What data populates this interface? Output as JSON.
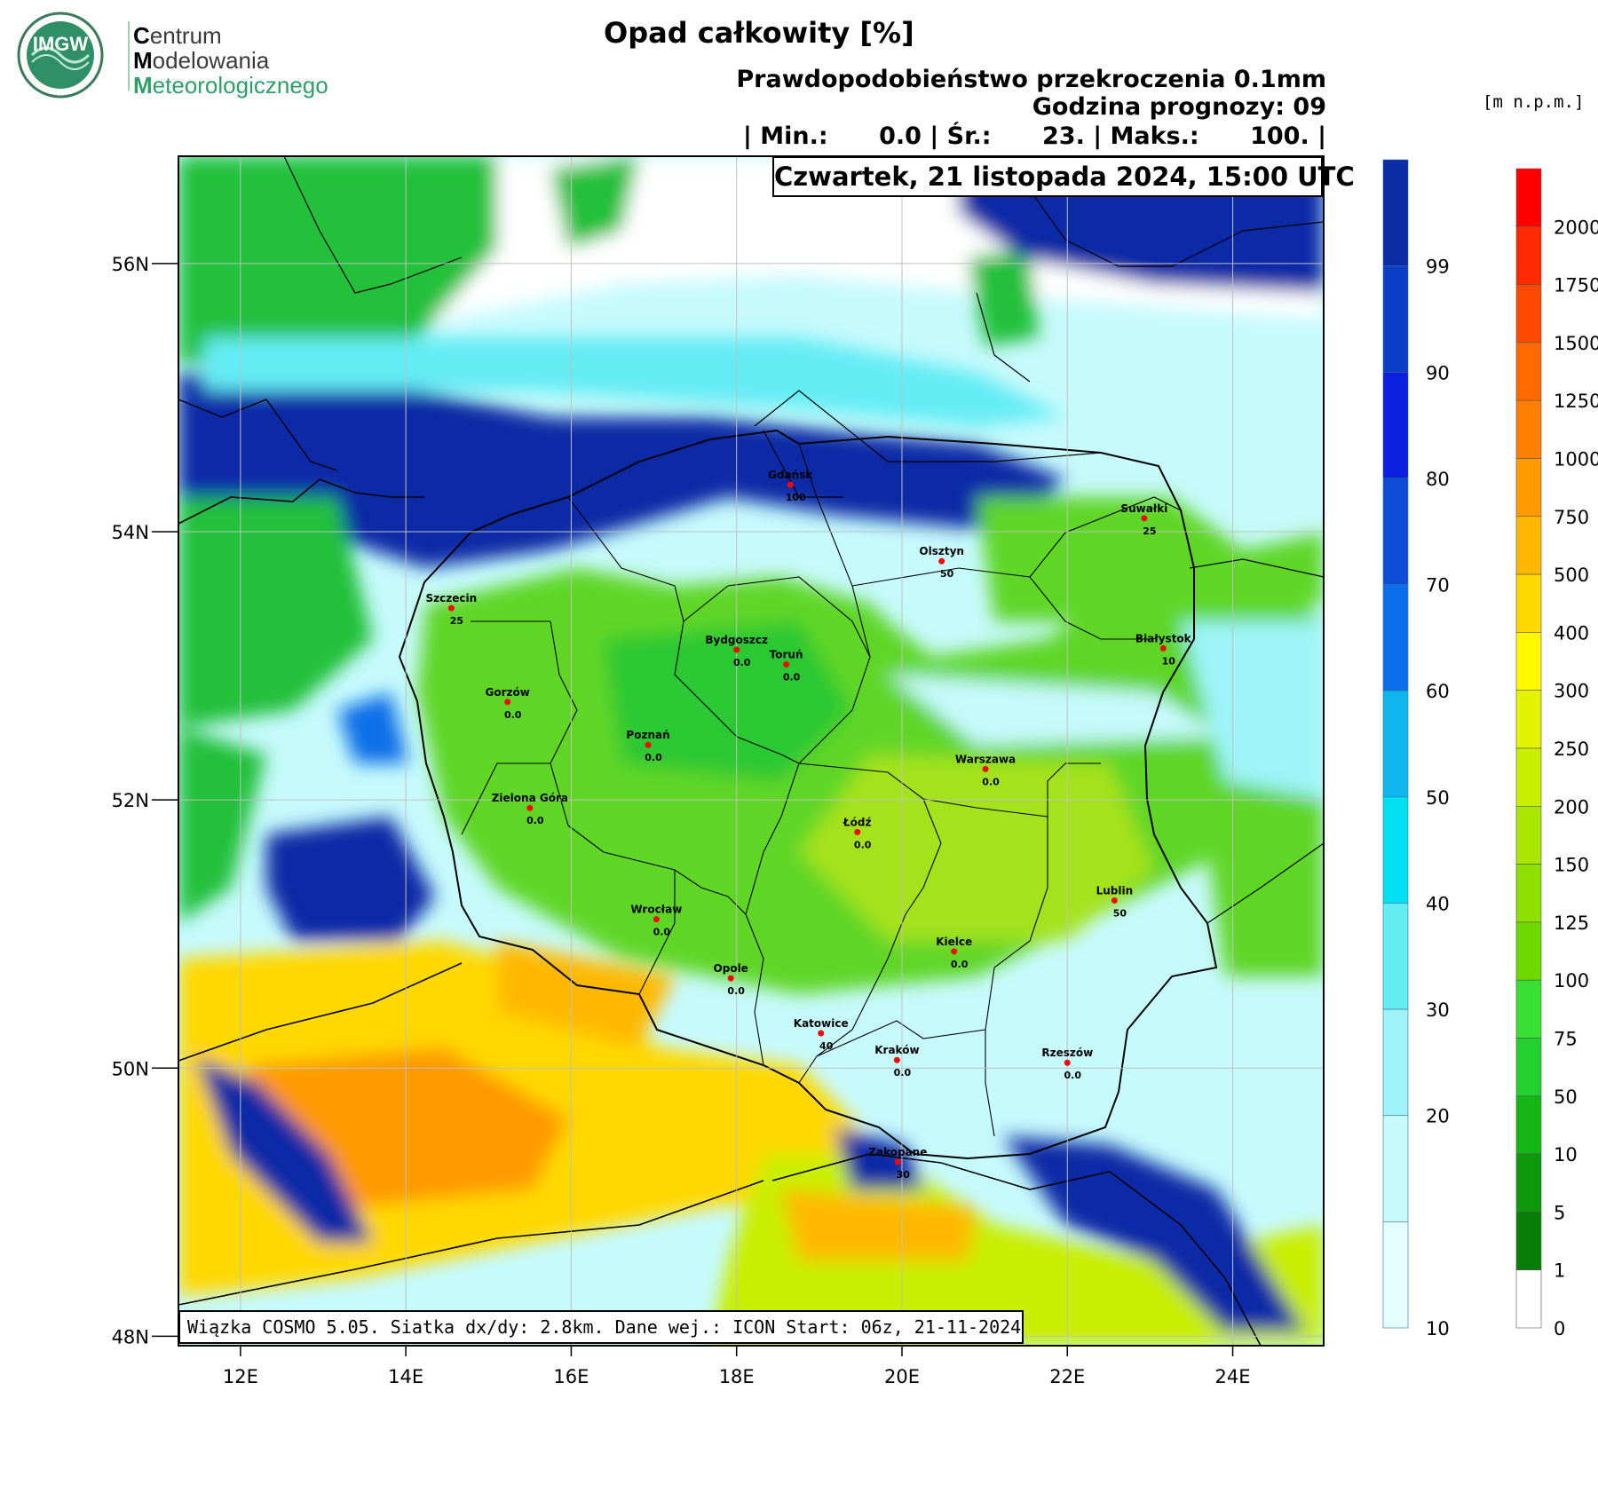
{
  "logo": {
    "emblem_text": "IMGW",
    "line1_initial": "C",
    "line1_rest": "entrum",
    "line2_initial": "M",
    "line2_rest": "odelowania",
    "line3_initial": "M",
    "line3_rest": "eteorologicznego"
  },
  "title": "Opad całkowity [%]",
  "subtitle1": "Prawdopodobieństwo przekroczenia 0.1mm",
  "subtitle2": "Godzina prognozy: 09",
  "stats": {
    "min_label": "| Min.:",
    "min_value": "0.0",
    "avg_label": "| Śr.:",
    "avg_value": "23.",
    "max_label": "| Maks.:",
    "max_value": "100.",
    "end": "|"
  },
  "date_label": "Czwartek, 21 listopada 2024, 15:00 UTC",
  "info_label": "Wiązka COSMO 5.05. Siatka dx/dy: 2.8km. Dane wej.: ICON Start: 06z, 21-11-2024",
  "map": {
    "lon_ticks": [
      "12E",
      "14E",
      "16E",
      "18E",
      "20E",
      "22E",
      "24E"
    ],
    "lon_values": [
      12,
      14,
      16,
      18,
      20,
      22,
      24
    ],
    "lat_ticks": [
      "56N",
      "54N",
      "52N",
      "50N",
      "48N"
    ],
    "lat_values": [
      56,
      54,
      52,
      50,
      48
    ],
    "lon_range": [
      11.25,
      25.1
    ],
    "lat_range": [
      47.93,
      56.8
    ]
  },
  "cities": [
    {
      "name": "Gdańsk",
      "value": "100",
      "lon": 18.65,
      "lat": 54.35
    },
    {
      "name": "Suwałki",
      "value": "25",
      "lon": 22.93,
      "lat": 54.1
    },
    {
      "name": "Olsztyn",
      "value": "50",
      "lon": 20.48,
      "lat": 53.78
    },
    {
      "name": "Szczecin",
      "value": "25",
      "lon": 14.55,
      "lat": 53.43
    },
    {
      "name": "Bydgoszcz",
      "value": "0.0",
      "lon": 18.0,
      "lat": 53.12
    },
    {
      "name": "Toruń",
      "value": "0.0",
      "lon": 18.6,
      "lat": 53.01
    },
    {
      "name": "Białystok",
      "value": "10",
      "lon": 23.16,
      "lat": 53.13
    },
    {
      "name": "Gorzów",
      "value": "0.0",
      "lon": 15.23,
      "lat": 52.73
    },
    {
      "name": "Poznań",
      "value": "0.0",
      "lon": 16.93,
      "lat": 52.41
    },
    {
      "name": "Warszawa",
      "value": "0.0",
      "lon": 21.01,
      "lat": 52.23
    },
    {
      "name": "Zielona Góra",
      "value": "0.0",
      "lon": 15.5,
      "lat": 51.94
    },
    {
      "name": "Łódź",
      "value": "0.0",
      "lon": 19.46,
      "lat": 51.76
    },
    {
      "name": "Lublin",
      "value": "50",
      "lon": 22.57,
      "lat": 51.25
    },
    {
      "name": "Wrocław",
      "value": "0.0",
      "lon": 17.03,
      "lat": 51.11
    },
    {
      "name": "Kielce",
      "value": "0.0",
      "lon": 20.63,
      "lat": 50.87
    },
    {
      "name": "Opole",
      "value": "0.0",
      "lon": 17.93,
      "lat": 50.67
    },
    {
      "name": "Katowice",
      "value": "40",
      "lon": 19.02,
      "lat": 50.26
    },
    {
      "name": "Kraków",
      "value": "0.0",
      "lon": 19.94,
      "lat": 50.06
    },
    {
      "name": "Rzeszów",
      "value": "0.0",
      "lon": 22.0,
      "lat": 50.04
    },
    {
      "name": "Zakopane",
      "value": "30",
      "lon": 19.95,
      "lat": 49.3
    }
  ],
  "legend_probability": {
    "labels": [
      "99",
      "90",
      "80",
      "70",
      "60",
      "50",
      "40",
      "30",
      "20",
      "10"
    ],
    "colors": [
      "#0c2ca6",
      "#0a3ec4",
      "#0a1fe0",
      "#0c4fd6",
      "#0a6fe8",
      "#0fb6ee",
      "#00e0f0",
      "#63ecf4",
      "#9ef4f8",
      "#c6fafc",
      "#e4fdfe"
    ]
  },
  "legend_elevation": {
    "units": "[m n.p.m.]",
    "labels": [
      "2000",
      "1750",
      "1500",
      "1250",
      "1000",
      "750",
      "500",
      "400",
      "300",
      "250",
      "200",
      "150",
      "125",
      "100",
      "75",
      "50",
      "10",
      "5",
      "1",
      "0"
    ],
    "colors": [
      "#ff0000",
      "#ff2a00",
      "#ff4a00",
      "#ff6a00",
      "#ff8000",
      "#ff9a00",
      "#ffb800",
      "#ffd800",
      "#fff800",
      "#e4f400",
      "#c8ee00",
      "#a8e600",
      "#8ee000",
      "#6ed800",
      "#38e034",
      "#22d030",
      "#14b614",
      "#0c9a0c",
      "#087e08",
      "#ffffff"
    ]
  }
}
